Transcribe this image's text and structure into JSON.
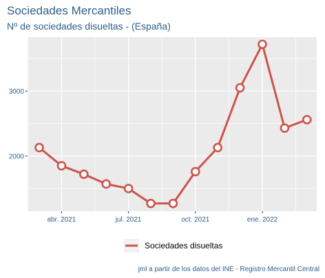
{
  "chart_data": {
    "type": "line",
    "title": "Sociedades Mercantiles",
    "subtitle": "Nº de sociedades disueltas - (España)",
    "x": [
      "2021-03",
      "2021-04",
      "2021-05",
      "2021-06",
      "2021-07",
      "2021-08",
      "2021-09",
      "2021-10",
      "2021-11",
      "2021-12",
      "2022-01",
      "2022-02",
      "2022-03"
    ],
    "series": [
      {
        "name": "Sociedades disueltas",
        "values": [
          2130,
          1850,
          1720,
          1570,
          1500,
          1270,
          1270,
          1760,
          2130,
          3050,
          3720,
          2430,
          2560
        ]
      }
    ],
    "x_ticks": [
      {
        "x": "2021-04",
        "label": "abr. 2021"
      },
      {
        "x": "2021-07",
        "label": "jul. 2021"
      },
      {
        "x": "2021-10",
        "label": "oct. 2021"
      },
      {
        "x": "2022-01",
        "label": "ene. 2022"
      }
    ],
    "y_ticks": [
      2000,
      3000
    ],
    "ylim": [
      1150,
      3830
    ],
    "grid": true,
    "legend_position": "bottom",
    "caption": "jml a partir de los datos del INE - Registro Mercantil Central",
    "colors": {
      "line": "#cd534c",
      "panel": "#ebebeb",
      "grid": "#ffffff",
      "text": "#2e5f8a"
    }
  }
}
